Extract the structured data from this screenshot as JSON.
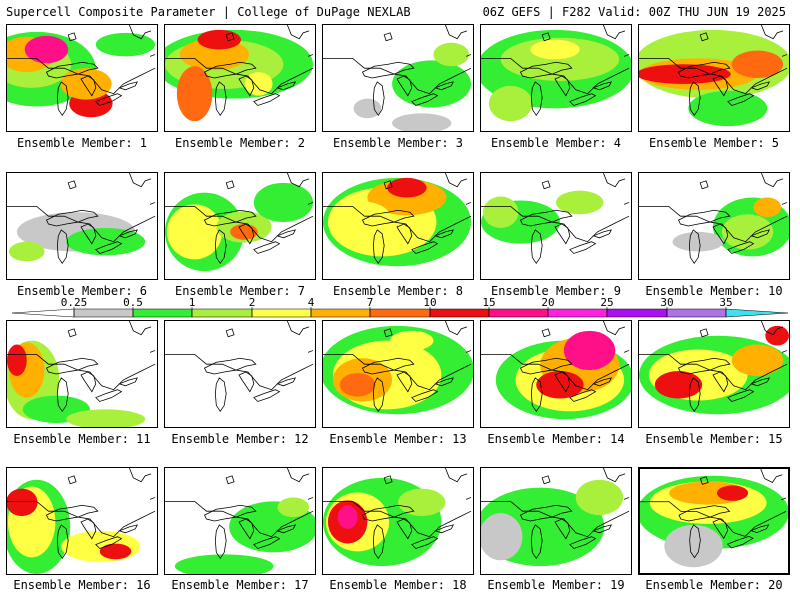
{
  "header": {
    "title": "Supercell Composite Parameter | College of DuPage NEXLAB",
    "run": "06Z GEFS | F282 Valid: 00Z THU JUN 19 2025"
  },
  "panels": [
    {
      "member": "Ensemble Member: 1"
    },
    {
      "member": "Ensemble Member: 2"
    },
    {
      "member": "Ensemble Member: 3"
    },
    {
      "member": "Ensemble Member: 4"
    },
    {
      "member": "Ensemble Member: 5"
    },
    {
      "member": "Ensemble Member: 6"
    },
    {
      "member": "Ensemble Member: 7"
    },
    {
      "member": "Ensemble Member: 8"
    },
    {
      "member": "Ensemble Member: 9"
    },
    {
      "member": "Ensemble Member: 10"
    },
    {
      "member": "Ensemble Member: 11"
    },
    {
      "member": "Ensemble Member: 12"
    },
    {
      "member": "Ensemble Member: 13"
    },
    {
      "member": "Ensemble Member: 14"
    },
    {
      "member": "Ensemble Member: 15"
    },
    {
      "member": "Ensemble Member: 16"
    },
    {
      "member": "Ensemble Member: 17"
    },
    {
      "member": "Ensemble Member: 18"
    },
    {
      "member": "Ensemble Member: 19"
    },
    {
      "member": "Ensemble Member: 20"
    }
  ],
  "colorbar": {
    "ticks": [
      "0.25",
      "0.5",
      "1",
      "2",
      "4",
      "7",
      "10",
      "15",
      "20",
      "25",
      "30",
      "35"
    ],
    "colors": [
      "#ffffff",
      "#c8c8c8",
      "#33ee33",
      "#a8f03c",
      "#ffff44",
      "#ffb000",
      "#ff6a10",
      "#ee1010",
      "#ff1088",
      "#ff20e0",
      "#aa10f0",
      "#b070e8",
      "#40e0f0"
    ]
  },
  "palette": {
    "gray": "#c8c8c8",
    "green": "#33ee33",
    "lime": "#a8f03c",
    "yellow": "#ffff44",
    "gold": "#ffb000",
    "orange": "#ff6a10",
    "red": "#ee1010",
    "magenta": "#ff1088"
  }
}
